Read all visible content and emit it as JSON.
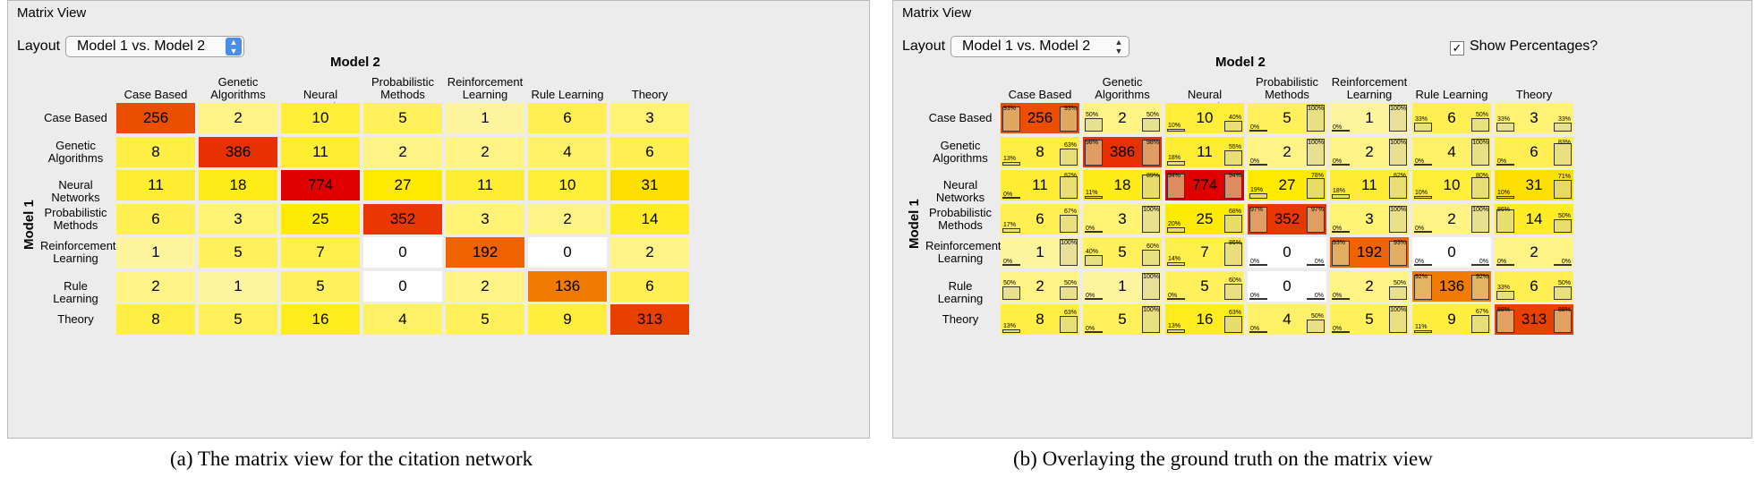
{
  "panels": [
    {
      "title": "Matrix View",
      "layout_label": "Layout",
      "layout_value": "Model 1 vs. Model 2",
      "col_axis_title": "Model 2",
      "row_axis_title": "Model 1",
      "show_percentages": null
    },
    {
      "title": "Matrix View",
      "layout_label": "Layout",
      "layout_value": "Model 1 vs. Model 2",
      "col_axis_title": "Model 2",
      "row_axis_title": "Model 1",
      "show_percentages": {
        "label": "Show Percentages?",
        "checked": true
      }
    }
  ],
  "categories": [
    "Case Based",
    "Genetic Algorithms",
    "Neural Networks",
    "Probabilistic Methods",
    "Reinforcement Learning",
    "Rule Learning",
    "Theory"
  ],
  "category_lines": [
    [
      "Case Based"
    ],
    [
      "Genetic",
      "Algorithms"
    ],
    [
      "Neural Networks"
    ],
    [
      "Probabilistic",
      "Methods"
    ],
    [
      "Reinforcement",
      "Learning"
    ],
    [
      "Rule Learning"
    ],
    [
      "Theory"
    ]
  ],
  "matrix": [
    [
      256,
      2,
      10,
      5,
      1,
      6,
      3
    ],
    [
      8,
      386,
      11,
      2,
      2,
      4,
      6
    ],
    [
      11,
      18,
      774,
      27,
      11,
      10,
      31
    ],
    [
      6,
      3,
      25,
      352,
      3,
      2,
      14
    ],
    [
      1,
      5,
      7,
      0,
      192,
      0,
      2
    ],
    [
      2,
      1,
      5,
      0,
      2,
      136,
      6
    ],
    [
      8,
      5,
      16,
      4,
      5,
      9,
      313
    ]
  ],
  "left_pct": [
    [
      "93%",
      "50%",
      "10%",
      "0%",
      "0%",
      "33%",
      "33%"
    ],
    [
      "13%",
      "98%",
      "18%",
      "0%",
      "0%",
      "0%",
      "0%"
    ],
    [
      "0%",
      "11%",
      "94%",
      "19%",
      "18%",
      "10%",
      "10%"
    ],
    [
      "17%",
      "0%",
      "20%",
      "97%",
      "0%",
      "0%",
      "86%"
    ],
    [
      "0%",
      "40%",
      "14%",
      "0%",
      "93%",
      "0%",
      "0%"
    ],
    [
      "50%",
      "0%",
      "0%",
      "0%",
      "0%",
      "92%",
      "33%"
    ],
    [
      "13%",
      "0%",
      "13%",
      "0%",
      "0%",
      "11%",
      "88%"
    ]
  ],
  "right_pct": [
    [
      "93%",
      "50%",
      "40%",
      "100%",
      "100%",
      "50%",
      "33%"
    ],
    [
      "63%",
      "98%",
      "55%",
      "100%",
      "100%",
      "100%",
      "83%"
    ],
    [
      "82%",
      "89%",
      "94%",
      "78%",
      "82%",
      "80%",
      "71%"
    ],
    [
      "67%",
      "100%",
      "68%",
      "97%",
      "100%",
      "100%",
      "50%"
    ],
    [
      "100%",
      "60%",
      "86%",
      "0%",
      "93%",
      "0%",
      "0%"
    ],
    [
      "50%",
      "100%",
      "60%",
      "0%",
      "50%",
      "92%",
      "50%"
    ],
    [
      "63%",
      "100%",
      "63%",
      "50%",
      "100%",
      "67%",
      "88%"
    ]
  ],
  "captions": [
    "(a)  The matrix view for the citation network",
    "(b)  Overlaying the ground truth on the matrix view"
  ],
  "colors": {
    "low": "#fff7c8",
    "mid": "#ffea00",
    "high": "#e10000",
    "empty": "#ffffff"
  }
}
